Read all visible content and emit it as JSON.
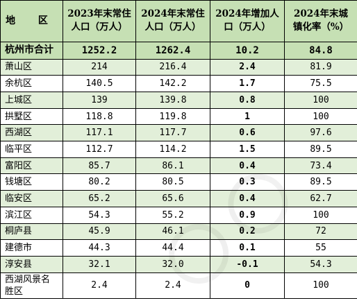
{
  "header": {
    "region": "地 区",
    "pop2023_line1": "2023年末常住",
    "pop2023_line2": "人口（万人）",
    "pop2024_line1": "2024年末常住",
    "pop2024_line2": "人口（万人）",
    "increase_line1": "2024年增加人",
    "increase_line2": "口（万人）",
    "urban_line1": "2024年末城",
    "urban_line2": "镇化率（%）"
  },
  "total": {
    "name": "杭州市合计",
    "pop2023": "1252.2",
    "pop2024": "1262.4",
    "increase": "10.2",
    "urban": "84.8"
  },
  "rows": [
    {
      "name": "萧山区",
      "pop2023": "214",
      "pop2024": "216.4",
      "increase": "2.4",
      "urban": "81.9"
    },
    {
      "name": "余杭区",
      "pop2023": "140.5",
      "pop2024": "142.2",
      "increase": "1.7",
      "urban": "75.5"
    },
    {
      "name": "上城区",
      "pop2023": "139",
      "pop2024": "139.8",
      "increase": "0.8",
      "urban": "100"
    },
    {
      "name": "拱墅区",
      "pop2023": "118.8",
      "pop2024": "119.8",
      "increase": "1",
      "urban": "100"
    },
    {
      "name": "西湖区",
      "pop2023": "117.1",
      "pop2024": "117.7",
      "increase": "0.6",
      "urban": "97.6"
    },
    {
      "name": "临平区",
      "pop2023": "112.7",
      "pop2024": "114.2",
      "increase": "1.5",
      "urban": "89.5"
    },
    {
      "name": "富阳区",
      "pop2023": "85.7",
      "pop2024": "86.1",
      "increase": "0.4",
      "urban": "73.4"
    },
    {
      "name": "钱塘区",
      "pop2023": "80.2",
      "pop2024": "80.5",
      "increase": "0.3",
      "urban": "89.5"
    },
    {
      "name": "临安区",
      "pop2023": "65.2",
      "pop2024": "65.6",
      "increase": "0.4",
      "urban": "62.7"
    },
    {
      "name": "滨江区",
      "pop2023": "54.3",
      "pop2024": "55.2",
      "increase": "0.9",
      "urban": "100"
    },
    {
      "name": "桐庐县",
      "pop2023": "45.9",
      "pop2024": "46.1",
      "increase": "0.2",
      "urban": "72"
    },
    {
      "name": "建德市",
      "pop2023": "44.3",
      "pop2024": "44.4",
      "increase": "0.1",
      "urban": "55"
    },
    {
      "name": "淳安县",
      "pop2023": "32.1",
      "pop2024": "32.0",
      "increase": "-0.1",
      "urban": "54.3"
    },
    {
      "name_line1": "西湖风景名",
      "name_line2": "胜区",
      "pop2023": "2.4",
      "pop2024": "2.4",
      "increase": "0",
      "urban": "100"
    }
  ],
  "colors": {
    "header_bg": "#c6e0b4",
    "stripe_bg": "#e2efd9",
    "border": "#000000"
  }
}
